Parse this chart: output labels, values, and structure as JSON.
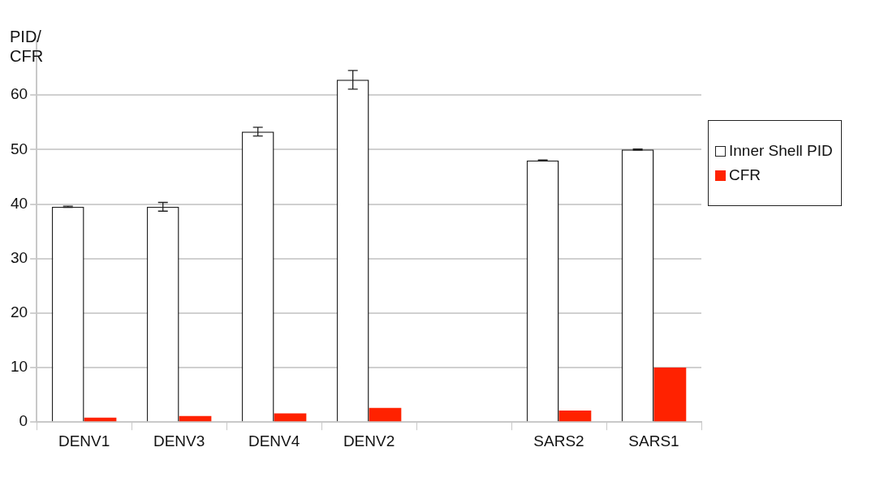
{
  "chart_data": {
    "type": "bar",
    "ylabel": "PID/\nCFR",
    "categories": [
      "DENV1",
      "DENV3",
      "DENV4",
      "DENV2",
      null,
      "SARS2",
      "SARS1"
    ],
    "series": [
      {
        "name": "Inner Shell PID",
        "color": "#ffffff",
        "values": [
          39.5,
          39.5,
          53.3,
          62.8,
          null,
          48.0,
          50.0
        ],
        "errors": [
          0.1,
          0.8,
          0.8,
          1.7,
          null,
          0.1,
          0.1
        ]
      },
      {
        "name": "CFR",
        "color": "#ff2200",
        "values": [
          0.8,
          1.1,
          1.6,
          2.6,
          null,
          2.1,
          10.0
        ]
      }
    ],
    "ylim": [
      0,
      70
    ],
    "yticks": [
      0,
      10,
      20,
      30,
      40,
      50,
      60
    ],
    "grid": "y",
    "legend": "right"
  }
}
